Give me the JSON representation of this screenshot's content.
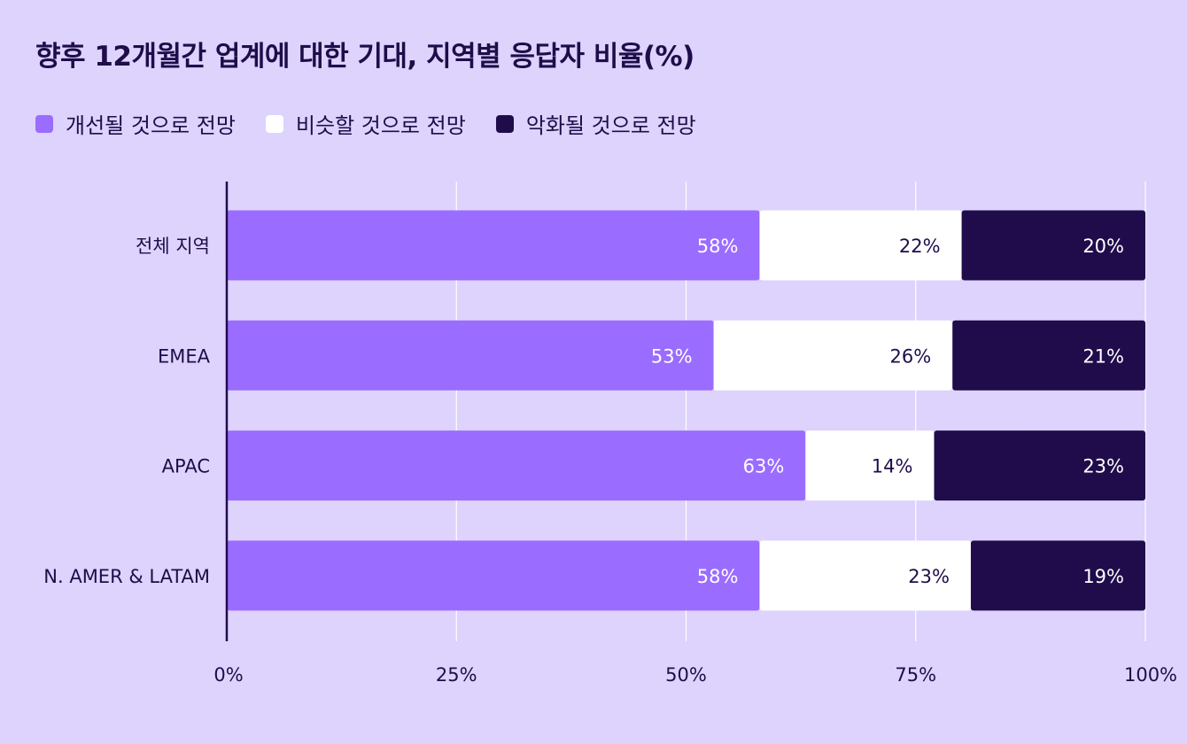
{
  "title": "향후 12개월간 업계에 대한 기대, 지역별 응답자 비율(%)",
  "colors": {
    "background": "#ddd3fd",
    "improve": "#9a6cff",
    "similar": "#ffffff",
    "worse": "#200c4b",
    "grid": "#ffffff",
    "axis": "#200c4b",
    "text": "#1f0d4a"
  },
  "chart_data": {
    "type": "bar",
    "orientation": "horizontal",
    "stacked": true,
    "categories": [
      "전체 지역",
      "EMEA",
      "APAC",
      "N. AMER & LATAM"
    ],
    "series": [
      {
        "name": "개선될 것으로 전망",
        "values": [
          58,
          53,
          63,
          58
        ],
        "labels": [
          "58%",
          "53%",
          "63%",
          "58%"
        ]
      },
      {
        "name": "비슷할 것으로 전망",
        "values": [
          22,
          26,
          14,
          23
        ],
        "labels": [
          "22%",
          "26%",
          "14%",
          "23%"
        ]
      },
      {
        "name": "악화될 것으로 전망",
        "values": [
          20,
          21,
          23,
          19
        ],
        "labels": [
          "20%",
          "21%",
          "23%",
          "19%"
        ]
      }
    ],
    "xlim": [
      0,
      100
    ],
    "x_ticks": [
      0,
      25,
      50,
      75,
      100
    ],
    "x_tick_labels": [
      "0%",
      "25%",
      "50%",
      "75%",
      "100%"
    ],
    "grid": true,
    "legend_position": "top-left"
  }
}
